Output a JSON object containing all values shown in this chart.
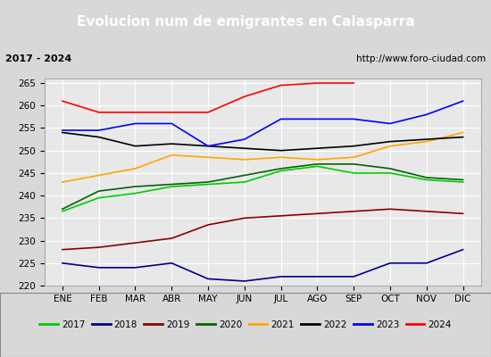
{
  "title": "Evolucion num de emigrantes en Calasparra",
  "subtitle_left": "2017 - 2024",
  "subtitle_right": "http://www.foro-ciudad.com",
  "ylim": [
    220,
    266
  ],
  "yticks": [
    220,
    225,
    230,
    235,
    240,
    245,
    250,
    255,
    260,
    265
  ],
  "months": [
    "ENE",
    "FEB",
    "MAR",
    "ABR",
    "MAY",
    "JUN",
    "JUL",
    "AGO",
    "SEP",
    "OCT",
    "NOV",
    "DIC"
  ],
  "series": {
    "2017": {
      "color": "#00cc00",
      "values": [
        236.5,
        239.5,
        240.5,
        242.0,
        242.5,
        243.0,
        245.5,
        246.5,
        245.0,
        245.0,
        243.5,
        243.0
      ]
    },
    "2018": {
      "color": "#00008b",
      "values": [
        225.0,
        224.0,
        224.0,
        225.0,
        221.5,
        221.0,
        222.0,
        222.0,
        222.0,
        225.0,
        225.0,
        228.0
      ]
    },
    "2019": {
      "color": "#8b0000",
      "values": [
        228.0,
        228.5,
        229.5,
        230.5,
        233.5,
        235.0,
        235.5,
        236.0,
        236.5,
        237.0,
        236.5,
        236.0
      ]
    },
    "2020": {
      "color": "#006400",
      "values": [
        237.0,
        241.0,
        242.0,
        242.5,
        243.0,
        244.5,
        246.0,
        247.0,
        247.0,
        246.0,
        244.0,
        243.5
      ]
    },
    "2021": {
      "color": "#ffa500",
      "values": [
        243.0,
        244.5,
        246.0,
        249.0,
        248.5,
        248.0,
        248.5,
        248.0,
        248.5,
        251.0,
        252.0,
        254.0
      ]
    },
    "2022": {
      "color": "#000000",
      "values": [
        254.0,
        253.0,
        251.0,
        251.5,
        251.0,
        250.5,
        250.0,
        250.5,
        251.0,
        252.0,
        252.5,
        253.0
      ]
    },
    "2023": {
      "color": "#0000ff",
      "values": [
        254.5,
        254.5,
        256.0,
        256.0,
        251.0,
        252.5,
        257.0,
        257.0,
        257.0,
        256.0,
        258.0,
        261.0
      ]
    },
    "2024": {
      "color": "#ff0000",
      "values": [
        261.0,
        258.5,
        258.5,
        258.5,
        258.5,
        262.0,
        264.5,
        265.0,
        265.0,
        null,
        null,
        null
      ]
    }
  },
  "bg_color": "#d8d8d8",
  "plot_bg_color": "#e8e8e8",
  "title_bg_color": "#5b9bd5",
  "title_color": "#ffffff",
  "grid_color": "#ffffff",
  "subtitle_box_color": "#ffffff",
  "legend_bg_color": "#e8e8e8"
}
